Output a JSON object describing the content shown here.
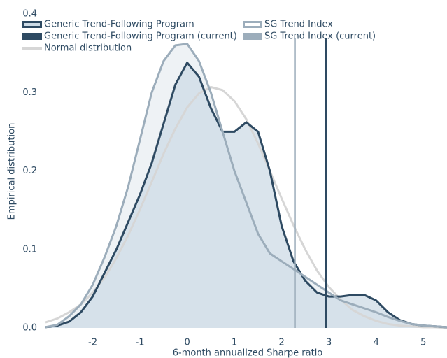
{
  "chart_data": {
    "type": "density",
    "x_label": "6-month annualized Sharpe ratio",
    "y_label": "Empirical distribution",
    "xlim": [
      -3,
      5.5
    ],
    "ylim": [
      0,
      0.4
    ],
    "xticks": [
      -2,
      -1,
      0,
      1,
      2,
      3,
      4,
      5
    ],
    "yticks": [
      {
        "value": 0,
        "label": "0.0"
      },
      0.1,
      0.2,
      0.3,
      0.4
    ],
    "grid": false,
    "x": [
      -3,
      -2.75,
      -2.5,
      -2.25,
      -2,
      -1.75,
      -1.5,
      -1.25,
      -1,
      -0.75,
      -0.5,
      -0.25,
      0,
      0.25,
      0.5,
      0.75,
      1,
      1.25,
      1.5,
      1.75,
      2,
      2.25,
      2.5,
      2.75,
      3,
      3.25,
      3.5,
      3.75,
      4,
      4.25,
      4.5,
      4.75,
      5,
      5.25,
      5.5
    ],
    "series": [
      {
        "name": "Generic Trend-Following Program",
        "color": "#2e4a62",
        "fill": "#cddbe6",
        "values": [
          0.001,
          0.003,
          0.008,
          0.02,
          0.04,
          0.07,
          0.1,
          0.135,
          0.17,
          0.21,
          0.26,
          0.31,
          0.338,
          0.32,
          0.28,
          0.25,
          0.25,
          0.262,
          0.25,
          0.2,
          0.13,
          0.085,
          0.06,
          0.045,
          0.04,
          0.04,
          0.042,
          0.042,
          0.035,
          0.02,
          0.01,
          0.005,
          0.003,
          0.002,
          0.001
        ]
      },
      {
        "name": "SG Trend Index",
        "color": "#9cadbb",
        "fill": "#e8edf1",
        "values": [
          0.001,
          0.004,
          0.015,
          0.03,
          0.055,
          0.09,
          0.13,
          0.18,
          0.24,
          0.3,
          0.34,
          0.36,
          0.362,
          0.34,
          0.3,
          0.25,
          0.2,
          0.16,
          0.12,
          0.095,
          0.085,
          0.075,
          0.065,
          0.055,
          0.045,
          0.035,
          0.03,
          0.025,
          0.02,
          0.014,
          0.009,
          0.005,
          0.003,
          0.002,
          0.001
        ]
      },
      {
        "name": "Generic Trend-Following Program (current)",
        "color": "#2e4a62",
        "value": 2.94
      },
      {
        "name": "SG Trend Index (current)",
        "color": "#9cadbb",
        "value": 2.28
      },
      {
        "name": "Normal distribution",
        "color": "#d6d6d6",
        "values": [
          0.007,
          0.012,
          0.02,
          0.03,
          0.045,
          0.064,
          0.089,
          0.118,
          0.151,
          0.186,
          0.222,
          0.254,
          0.281,
          0.299,
          0.307,
          0.303,
          0.289,
          0.266,
          0.235,
          0.2,
          0.165,
          0.131,
          0.1,
          0.073,
          0.052,
          0.036,
          0.023,
          0.015,
          0.009,
          0.005,
          0.003,
          0.002,
          0.001,
          0.001,
          0
        ]
      }
    ]
  }
}
